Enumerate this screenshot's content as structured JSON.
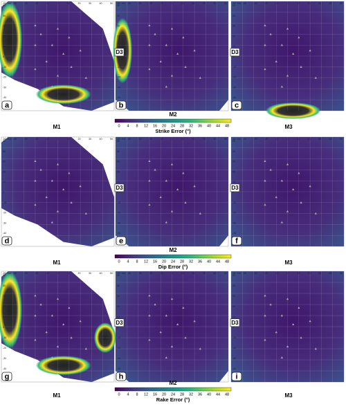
{
  "figure": {
    "rows": [
      {
        "panels": [
          "a",
          "b",
          "c"
        ],
        "models": [
          "M1",
          "M2",
          "M3"
        ],
        "colorbar": {
          "title": "Strike Error (°)",
          "ticks": [
            0,
            4,
            8,
            12,
            16,
            20,
            24,
            28,
            32,
            36,
            40,
            44,
            48
          ]
        }
      },
      {
        "panels": [
          "d",
          "e",
          "f"
        ],
        "models": [
          "M1",
          "M2",
          "M3"
        ],
        "colorbar": {
          "title": "Dip Error (°)",
          "ticks": [
            0,
            4,
            8,
            12,
            16,
            20,
            24,
            28,
            32,
            36,
            40,
            44,
            48
          ]
        }
      },
      {
        "panels": [
          "g",
          "h",
          "i"
        ],
        "models": [
          "M1",
          "M2",
          "M3"
        ],
        "colorbar": {
          "title": "Rake Error (°)",
          "ticks": [
            0,
            4,
            8,
            12,
            16,
            20,
            24,
            28,
            32,
            36,
            40,
            44,
            48
          ]
        }
      }
    ],
    "inset_label": "D3",
    "x_axis": {
      "unit": "km",
      "ticks": [
        -50,
        -40,
        -30,
        -20,
        -10,
        0,
        10,
        20,
        30,
        40,
        50
      ]
    },
    "y_axis": {
      "ticks": [
        50,
        40,
        30,
        20,
        10,
        0,
        -10,
        -20,
        -30,
        -40,
        -50
      ]
    }
  }
}
